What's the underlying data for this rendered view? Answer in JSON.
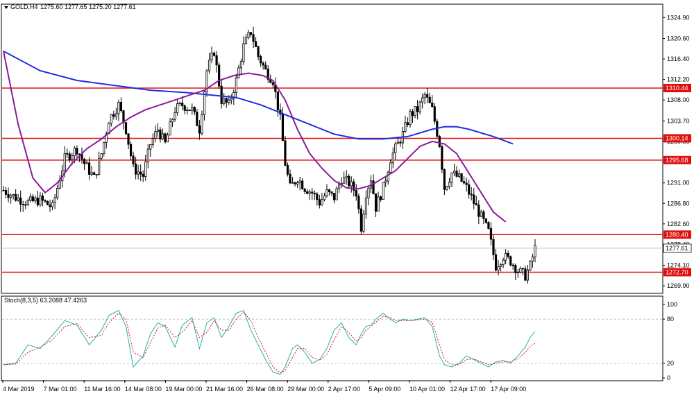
{
  "header": {
    "symbol_label": "GOLD,H4",
    "ohlc_label": "1275.60 1277.65 1275.20 1277.61",
    "indicator_label": "Stoch(8,3,5) 63.2088 47.4263"
  },
  "colors": {
    "background": "#ffffff",
    "grid": "#c0c0c0",
    "candle": "#000000",
    "ma_fast": "#8b1a9a",
    "ma_slow": "#1f2fe0",
    "levels": "#e01010",
    "stoch_main": "#20b2aa",
    "stoch_signal": "#e01010"
  },
  "chart_data": {
    "type": "candlestick",
    "symbol": "GOLD",
    "timeframe": "H4",
    "ylim": [
      1268.5,
      1327.5
    ],
    "price_ticks": [
      "1324.90",
      "1320.60",
      "1316.40",
      "1312.20",
      "1308.00",
      "1303.70",
      "1299.50",
      "1295.30",
      "1291.00",
      "1286.80",
      "1282.60",
      "1278.40",
      "1274.10",
      "1269.90"
    ],
    "current_price": "1277.61",
    "levels": [
      {
        "label": "1310.44",
        "value": 1310.44
      },
      {
        "label": "1300.14",
        "value": 1300.14
      },
      {
        "label": "1295.68",
        "value": 1295.68
      },
      {
        "label": "1280.40",
        "value": 1280.4
      },
      {
        "label": "1272.70",
        "value": 1272.7
      }
    ],
    "time_labels": [
      "4 Mar 2019",
      "7 Mar 01:00",
      "11 Mar 16:00",
      "14 Mar 08:00",
      "19 Mar 00:00",
      "21 Mar 16:00",
      "26 Mar 08:00",
      "29 Mar 00:00",
      "2 Apr 17:00",
      "5 Apr 09:00",
      "10 Apr 01:00",
      "12 Apr 17:00",
      "17 Apr 09:00"
    ],
    "close_path": [
      [
        0,
        1289.5
      ],
      [
        5,
        1288
      ],
      [
        10,
        1287
      ],
      [
        15,
        1287.5
      ],
      [
        20,
        1286
      ],
      [
        25,
        1296
      ],
      [
        30,
        1298
      ],
      [
        33,
        1295
      ],
      [
        37,
        1292
      ],
      [
        40,
        1297
      ],
      [
        43,
        1304
      ],
      [
        47,
        1307
      ],
      [
        50,
        1302
      ],
      [
        53,
        1294
      ],
      [
        57,
        1292.5
      ],
      [
        60,
        1299
      ],
      [
        63,
        1302
      ],
      [
        66,
        1299
      ],
      [
        70,
        1306
      ],
      [
        73,
        1307
      ],
      [
        77,
        1306
      ],
      [
        80,
        1302
      ],
      [
        83,
        1314
      ],
      [
        86,
        1318
      ],
      [
        89,
        1308
      ],
      [
        92,
        1307
      ],
      [
        95,
        1312
      ],
      [
        98,
        1319
      ],
      [
        101,
        1322
      ],
      [
        104,
        1317
      ],
      [
        107,
        1314
      ],
      [
        110,
        1312
      ],
      [
        113,
        1304
      ],
      [
        115,
        1295
      ],
      [
        117,
        1290
      ],
      [
        120,
        1292
      ],
      [
        123,
        1290
      ],
      [
        126,
        1289
      ],
      [
        129,
        1287
      ],
      [
        132,
        1289
      ],
      [
        135,
        1288
      ],
      [
        138,
        1292
      ],
      [
        141,
        1291
      ],
      [
        144,
        1289
      ],
      [
        146,
        1282
      ],
      [
        148,
        1289
      ],
      [
        150,
        1292
      ],
      [
        152,
        1286
      ],
      [
        155,
        1290
      ],
      [
        158,
        1296
      ],
      [
        160,
        1298
      ],
      [
        163,
        1301
      ],
      [
        166,
        1305
      ],
      [
        169,
        1306
      ],
      [
        172,
        1309
      ],
      [
        175,
        1306
      ],
      [
        178,
        1299
      ],
      [
        180,
        1290
      ],
      [
        183,
        1293
      ],
      [
        186,
        1292
      ],
      [
        189,
        1290
      ],
      [
        192,
        1287
      ],
      [
        195,
        1284
      ],
      [
        198,
        1281
      ],
      [
        201,
        1274
      ],
      [
        204,
        1276
      ],
      [
        207,
        1275
      ],
      [
        210,
        1273
      ],
      [
        213,
        1272
      ],
      [
        215,
        1274
      ],
      [
        217,
        1277.6
      ]
    ],
    "ma_fast": [
      [
        0,
        1318
      ],
      [
        6,
        1303
      ],
      [
        12,
        1292
      ],
      [
        17,
        1289
      ],
      [
        22,
        1291
      ],
      [
        28,
        1295
      ],
      [
        34,
        1298
      ],
      [
        40,
        1300
      ],
      [
        46,
        1302.5
      ],
      [
        52,
        1304.5
      ],
      [
        58,
        1306
      ],
      [
        64,
        1307
      ],
      [
        70,
        1308
      ],
      [
        76,
        1309
      ],
      [
        82,
        1310
      ],
      [
        88,
        1312
      ],
      [
        94,
        1313
      ],
      [
        100,
        1313.5
      ],
      [
        106,
        1313
      ],
      [
        110,
        1312
      ],
      [
        115,
        1308
      ],
      [
        120,
        1302
      ],
      [
        125,
        1297
      ],
      [
        130,
        1294
      ],
      [
        135,
        1291.5
      ],
      [
        140,
        1290
      ],
      [
        145,
        1289.8
      ],
      [
        150,
        1290.5
      ],
      [
        155,
        1292
      ],
      [
        160,
        1293.5
      ],
      [
        165,
        1296
      ],
      [
        170,
        1298.5
      ],
      [
        175,
        1299.5
      ],
      [
        180,
        1299
      ],
      [
        185,
        1297
      ],
      [
        190,
        1293
      ],
      [
        195,
        1289
      ],
      [
        200,
        1285
      ],
      [
        205,
        1283
      ]
    ],
    "ma_slow": [
      [
        0,
        1318
      ],
      [
        15,
        1314
      ],
      [
        30,
        1312
      ],
      [
        45,
        1311
      ],
      [
        60,
        1310
      ],
      [
        75,
        1309.5
      ],
      [
        85,
        1309
      ],
      [
        95,
        1308.5
      ],
      [
        105,
        1307
      ],
      [
        115,
        1305
      ],
      [
        125,
        1303
      ],
      [
        135,
        1301
      ],
      [
        145,
        1300
      ],
      [
        155,
        1300
      ],
      [
        165,
        1300.5
      ],
      [
        175,
        1302
      ],
      [
        180,
        1302.5
      ],
      [
        185,
        1302.5
      ],
      [
        190,
        1302
      ],
      [
        200,
        1300.5
      ],
      [
        208,
        1299
      ]
    ],
    "stoch": {
      "ylim": [
        0,
        100
      ],
      "levels": [
        80,
        20
      ],
      "axis_labels": [
        "100",
        "80",
        "20",
        "0"
      ],
      "main": [
        [
          0,
          18
        ],
        [
          5,
          20
        ],
        [
          10,
          45
        ],
        [
          15,
          40
        ],
        [
          20,
          58
        ],
        [
          25,
          78
        ],
        [
          30,
          72
        ],
        [
          35,
          45
        ],
        [
          40,
          65
        ],
        [
          43,
          85
        ],
        [
          47,
          92
        ],
        [
          50,
          70
        ],
        [
          53,
          15
        ],
        [
          57,
          30
        ],
        [
          60,
          60
        ],
        [
          63,
          75
        ],
        [
          66,
          70
        ],
        [
          70,
          42
        ],
        [
          73,
          72
        ],
        [
          77,
          82
        ],
        [
          80,
          40
        ],
        [
          83,
          75
        ],
        [
          86,
          82
        ],
        [
          89,
          55
        ],
        [
          92,
          70
        ],
        [
          95,
          88
        ],
        [
          98,
          92
        ],
        [
          101,
          65
        ],
        [
          104,
          45
        ],
        [
          107,
          25
        ],
        [
          110,
          8
        ],
        [
          113,
          5
        ],
        [
          115,
          15
        ],
        [
          118,
          40
        ],
        [
          120,
          45
        ],
        [
          123,
          35
        ],
        [
          126,
          20
        ],
        [
          129,
          25
        ],
        [
          132,
          40
        ],
        [
          135,
          65
        ],
        [
          138,
          75
        ],
        [
          141,
          55
        ],
        [
          144,
          45
        ],
        [
          146,
          60
        ],
        [
          148,
          70
        ],
        [
          150,
          72
        ],
        [
          152,
          80
        ],
        [
          155,
          88
        ],
        [
          158,
          80
        ],
        [
          160,
          75
        ],
        [
          163,
          80
        ],
        [
          166,
          78
        ],
        [
          169,
          80
        ],
        [
          172,
          82
        ],
        [
          175,
          70
        ],
        [
          178,
          30
        ],
        [
          180,
          18
        ],
        [
          183,
          15
        ],
        [
          186,
          20
        ],
        [
          189,
          30
        ],
        [
          192,
          25
        ],
        [
          195,
          20
        ],
        [
          198,
          15
        ],
        [
          201,
          22
        ],
        [
          204,
          24
        ],
        [
          207,
          20
        ],
        [
          210,
          30
        ],
        [
          213,
          42
        ],
        [
          215,
          55
        ],
        [
          217,
          63
        ]
      ],
      "signal": [
        [
          0,
          18
        ],
        [
          5,
          19
        ],
        [
          10,
          35
        ],
        [
          15,
          42
        ],
        [
          20,
          52
        ],
        [
          25,
          70
        ],
        [
          30,
          74
        ],
        [
          35,
          55
        ],
        [
          40,
          58
        ],
        [
          43,
          75
        ],
        [
          47,
          88
        ],
        [
          50,
          80
        ],
        [
          53,
          35
        ],
        [
          57,
          28
        ],
        [
          60,
          48
        ],
        [
          63,
          68
        ],
        [
          66,
          72
        ],
        [
          70,
          55
        ],
        [
          73,
          62
        ],
        [
          77,
          78
        ],
        [
          80,
          55
        ],
        [
          83,
          62
        ],
        [
          86,
          78
        ],
        [
          89,
          65
        ],
        [
          92,
          65
        ],
        [
          95,
          80
        ],
        [
          98,
          90
        ],
        [
          101,
          78
        ],
        [
          104,
          55
        ],
        [
          107,
          35
        ],
        [
          110,
          15
        ],
        [
          113,
          7
        ],
        [
          115,
          10
        ],
        [
          118,
          28
        ],
        [
          120,
          40
        ],
        [
          123,
          40
        ],
        [
          126,
          28
        ],
        [
          129,
          24
        ],
        [
          132,
          32
        ],
        [
          135,
          52
        ],
        [
          138,
          70
        ],
        [
          141,
          62
        ],
        [
          144,
          50
        ],
        [
          146,
          55
        ],
        [
          148,
          65
        ],
        [
          150,
          70
        ],
        [
          152,
          76
        ],
        [
          155,
          84
        ],
        [
          158,
          82
        ],
        [
          160,
          78
        ],
        [
          163,
          78
        ],
        [
          166,
          78
        ],
        [
          169,
          79
        ],
        [
          172,
          80
        ],
        [
          175,
          76
        ],
        [
          178,
          45
        ],
        [
          180,
          25
        ],
        [
          183,
          18
        ],
        [
          186,
          18
        ],
        [
          189,
          25
        ],
        [
          192,
          26
        ],
        [
          195,
          22
        ],
        [
          198,
          18
        ],
        [
          201,
          20
        ],
        [
          204,
          22
        ],
        [
          207,
          22
        ],
        [
          210,
          26
        ],
        [
          213,
          35
        ],
        [
          215,
          43
        ],
        [
          217,
          47
        ]
      ]
    }
  }
}
